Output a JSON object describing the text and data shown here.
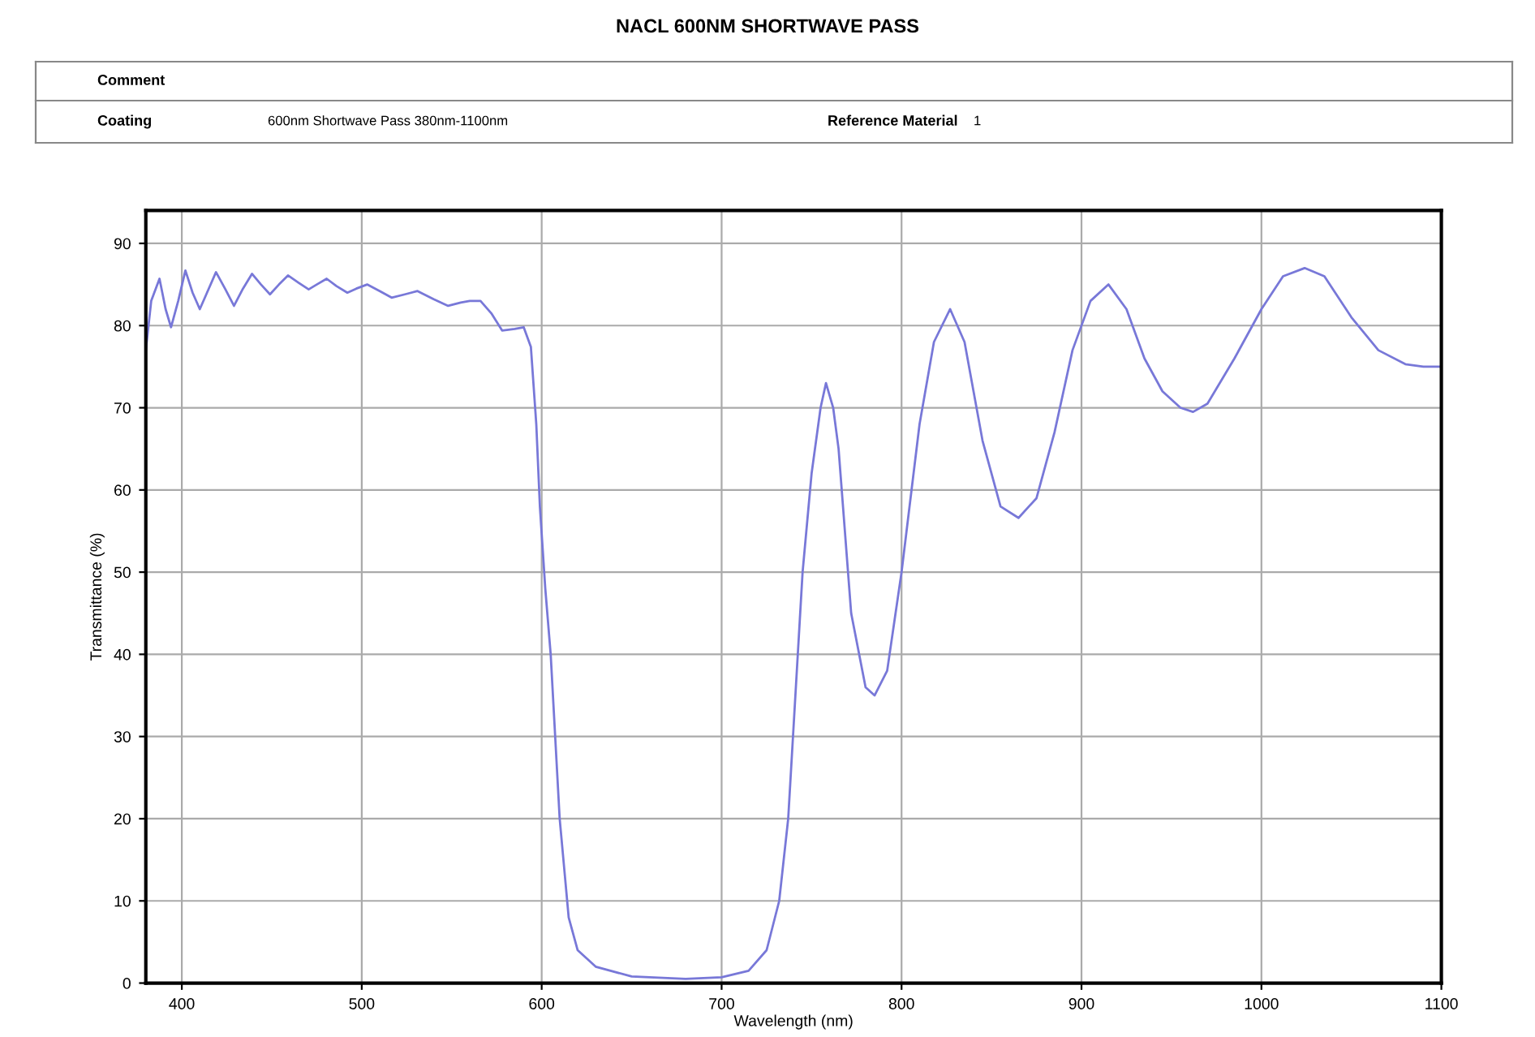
{
  "chart_data": {
    "type": "line",
    "title": "NACL 600NM SHORTWAVE PASS",
    "xlabel": "Wavelength (nm)",
    "ylabel": "Transmittance (%)",
    "annotations": [
      "Comment",
      "Coating",
      "600nm Shortwave Pass 380nm-1100nm",
      "Reference Material",
      "1"
    ],
    "series": [
      {
        "color": "#7878d8",
        "x": [
          380,
          383,
          387.6,
          391,
          394,
          398,
          402,
          406,
          410,
          414,
          419,
          424,
          429,
          434,
          439,
          444,
          449,
          454,
          459,
          465,
          470.5,
          475,
          480.5,
          486,
          492,
          497,
          503,
          510,
          516.6,
          524,
          531,
          540,
          548,
          555,
          560,
          566,
          572,
          578,
          585,
          590,
          594,
          597,
          599,
          602,
          605,
          610,
          615,
          620,
          630,
          650,
          680,
          700,
          715,
          725,
          732,
          737,
          741,
          745,
          750,
          755,
          758,
          762,
          765,
          772,
          780,
          785,
          792,
          800,
          810,
          818,
          827,
          835,
          845,
          855,
          865,
          875,
          885,
          895,
          905,
          915,
          925,
          935,
          945,
          955,
          962,
          970,
          985,
          1000,
          1012,
          1024,
          1035,
          1050,
          1065,
          1080,
          1090,
          1100
        ],
        "values": [
          77,
          83,
          85.7,
          82,
          79.8,
          83,
          86.7,
          84,
          82,
          84,
          86.5,
          84.5,
          82.4,
          84.5,
          86.3,
          85,
          83.8,
          85,
          86.1,
          85.2,
          84.4,
          85,
          85.7,
          84.8,
          84,
          84.5,
          85,
          84.2,
          83.4,
          83.8,
          84.2,
          83.2,
          82.4,
          82.8,
          83,
          83,
          81.5,
          79.4,
          79.6,
          79.8,
          77.4,
          68,
          58,
          48,
          40,
          20,
          8,
          4,
          2,
          0.8,
          0.5,
          0.7,
          1.5,
          4,
          10,
          20,
          35,
          50,
          62,
          70,
          73,
          70,
          65,
          45,
          36,
          35,
          38,
          50,
          68,
          78,
          82,
          78,
          66,
          58,
          56.6,
          59,
          67,
          77,
          83,
          85,
          82,
          76,
          72,
          70,
          69.5,
          70.5,
          76,
          82,
          86,
          87,
          86,
          81,
          77,
          75.3,
          75,
          75
        ]
      }
    ],
    "xlim": [
      380,
      1100
    ],
    "ylim": [
      0,
      94
    ],
    "xticks": [
      400,
      500,
      600,
      700,
      800,
      900,
      1000,
      1100
    ],
    "yticks": [
      0,
      10,
      20,
      30,
      40,
      50,
      60,
      70,
      80,
      90
    ],
    "grid": true,
    "marker": "none",
    "line_style": "solid"
  }
}
